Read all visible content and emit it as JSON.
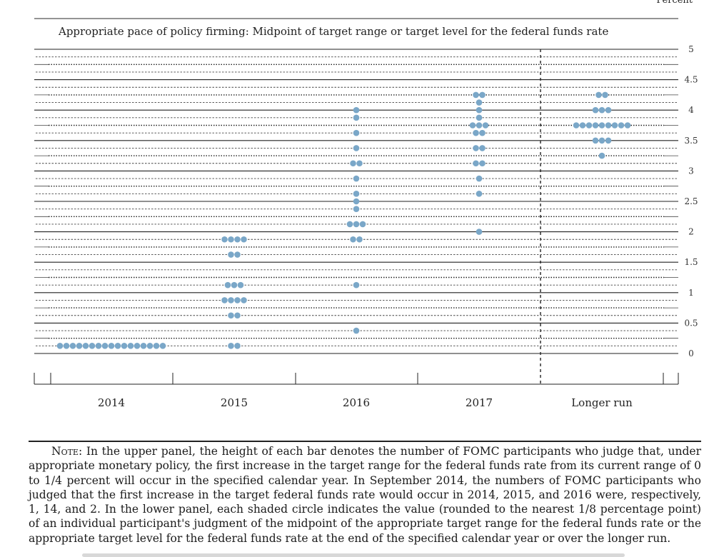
{
  "chart_data": {
    "type": "scatter",
    "title": "Appropriate pace of policy firming: Midpoint of target range or target level for the federal funds rate",
    "unit_label": "Percent",
    "categories": [
      "2014",
      "2015",
      "2016",
      "2017",
      "Longer run"
    ],
    "ylim": [
      0,
      5
    ],
    "yticks": [
      "0",
      "0.5",
      "1",
      "1.5",
      "2",
      "2.5",
      "3",
      "3.5",
      "4",
      "4.5",
      "5"
    ],
    "grid": "solid at whole percents, dotted at eighths",
    "dot_color": "#7aa7c8",
    "series": [
      {
        "category": "2014",
        "points": [
          {
            "y": 0.125,
            "n": 17
          }
        ]
      },
      {
        "category": "2015",
        "points": [
          {
            "y": 0.125,
            "n": 2
          },
          {
            "y": 0.625,
            "n": 2
          },
          {
            "y": 0.875,
            "n": 4
          },
          {
            "y": 1.125,
            "n": 3
          },
          {
            "y": 1.625,
            "n": 2
          },
          {
            "y": 1.875,
            "n": 4
          }
        ]
      },
      {
        "category": "2016",
        "points": [
          {
            "y": 0.375,
            "n": 1
          },
          {
            "y": 1.125,
            "n": 1
          },
          {
            "y": 1.875,
            "n": 2
          },
          {
            "y": 2.125,
            "n": 3
          },
          {
            "y": 2.375,
            "n": 1
          },
          {
            "y": 2.5,
            "n": 1
          },
          {
            "y": 2.625,
            "n": 1
          },
          {
            "y": 2.875,
            "n": 1
          },
          {
            "y": 3.125,
            "n": 2
          },
          {
            "y": 3.375,
            "n": 1
          },
          {
            "y": 3.625,
            "n": 1
          },
          {
            "y": 3.875,
            "n": 1
          },
          {
            "y": 4.0,
            "n": 1
          }
        ]
      },
      {
        "category": "2017",
        "points": [
          {
            "y": 2.0,
            "n": 1
          },
          {
            "y": 2.625,
            "n": 1
          },
          {
            "y": 2.875,
            "n": 1
          },
          {
            "y": 3.125,
            "n": 2
          },
          {
            "y": 3.375,
            "n": 2
          },
          {
            "y": 3.625,
            "n": 2
          },
          {
            "y": 3.75,
            "n": 3
          },
          {
            "y": 3.875,
            "n": 1
          },
          {
            "y": 4.0,
            "n": 1
          },
          {
            "y": 4.125,
            "n": 1
          },
          {
            "y": 4.25,
            "n": 2
          }
        ]
      },
      {
        "category": "Longer run",
        "points": [
          {
            "y": 3.25,
            "n": 1
          },
          {
            "y": 3.5,
            "n": 3
          },
          {
            "y": 3.75,
            "n": 9
          },
          {
            "y": 4.0,
            "n": 3
          },
          {
            "y": 4.25,
            "n": 2
          }
        ]
      }
    ]
  },
  "note": {
    "label": "Note:",
    "text": "In the upper panel, the height of each bar denotes the number of FOMC participants who judge that, under appropriate monetary policy, the first increase in the target range for the federal funds rate from its current range of 0 to 1/4 percent will occur in the specified calendar year. In September 2014, the numbers of FOMC participants who judged that the first increase in the target federal funds rate would occur in 2014, 2015, and 2016 were, respectively, 1, 14, and 2. In the lower panel, each shaded circle indicates the value (rounded to the nearest 1/8 percentage point) of an individual participant's judgment of the midpoint of the appropriate target range for the federal funds rate or the appropriate target level for the federal funds rate at the end of the specified calendar year or over the longer run."
  }
}
